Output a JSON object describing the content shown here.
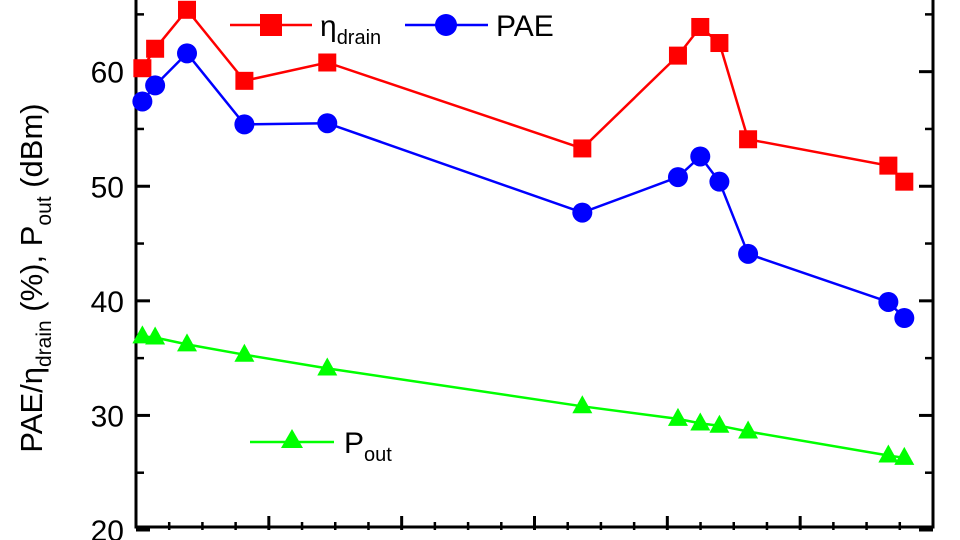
{
  "chart_data": {
    "type": "line",
    "ylabel": {
      "part1": "PAE/η",
      "part1_sub": "drain",
      "part2": " (%), P",
      "part2_sub": "out",
      "part3": " (dBm)"
    },
    "ylim": [
      20,
      68
    ],
    "yticks": [
      "20",
      "30",
      "40",
      "50",
      "60"
    ],
    "x_major_ticks": 5,
    "x_minor_ticks": 20,
    "series": [
      {
        "name": "η",
        "name_sub": "drain",
        "color": "#ff0000",
        "marker": "square",
        "x": [
          0.2,
          0.6,
          1.6,
          3.4,
          6.0,
          14.0,
          17.0,
          17.7,
          18.3,
          19.2,
          23.6,
          24.1
        ],
        "y": [
          60.3,
          62.0,
          65.4,
          59.2,
          60.8,
          53.3,
          61.4,
          63.9,
          62.5,
          54.1,
          51.8,
          50.4
        ]
      },
      {
        "name": "PAE",
        "color": "#0000ff",
        "marker": "circle",
        "x": [
          0.2,
          0.6,
          1.6,
          3.4,
          6.0,
          14.0,
          17.0,
          17.7,
          18.3,
          19.2,
          23.6,
          24.1
        ],
        "y": [
          57.4,
          58.8,
          61.6,
          55.4,
          55.5,
          47.7,
          50.8,
          52.6,
          50.4,
          44.1,
          39.9,
          38.5
        ]
      },
      {
        "name": "P",
        "name_sub": "out",
        "color": "#00ff00",
        "marker": "triangle",
        "x": [
          0.2,
          0.6,
          1.6,
          3.4,
          6.0,
          14.0,
          17.0,
          17.7,
          18.3,
          19.2,
          23.6,
          24.1
        ],
        "y": [
          36.9,
          36.8,
          36.2,
          35.3,
          34.1,
          30.8,
          29.7,
          29.3,
          29.1,
          28.6,
          26.5,
          26.3
        ]
      }
    ]
  }
}
